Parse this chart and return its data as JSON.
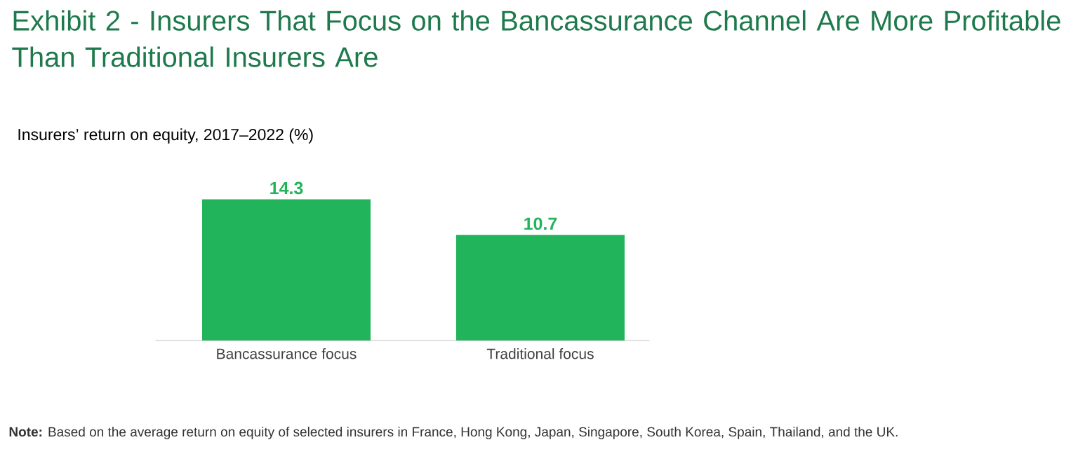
{
  "chart_data": {
    "type": "bar",
    "title": "Exhibit 2 - Insurers That Focus on the Bancassurance Channel Are More Profitable Than Traditional Insurers Are",
    "subtitle": "Insurers’ return on equity, 2017–2022 (%)",
    "categories": [
      "Bancassurance focus",
      "Traditional focus"
    ],
    "values": [
      14.3,
      10.7
    ],
    "color": "#22b45a",
    "data_labels": true,
    "annotations": [
      "**Note:** Based on the average return on equity of selected insurers in France, Hong Kong, Japan, Singapore, South Korea, Spain, Thailand, and the UK."
    ]
  }
}
